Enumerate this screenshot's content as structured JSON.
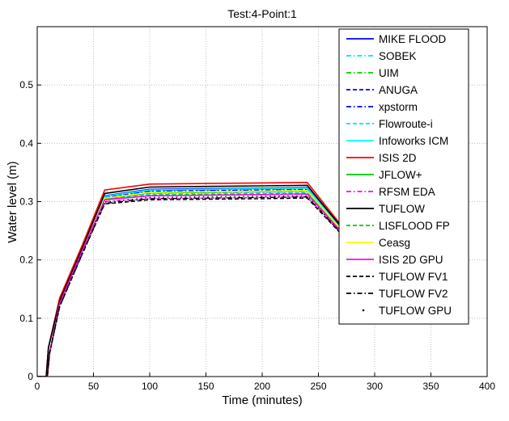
{
  "chart_data": {
    "type": "line",
    "title": "Test:4-Point:1",
    "xlabel": "Time (minutes)",
    "ylabel": "Water level (m)",
    "xlim": [
      0,
      400
    ],
    "ylim": [
      0,
      0.6
    ],
    "xticks": [
      0,
      50,
      100,
      150,
      200,
      250,
      300,
      350,
      400
    ],
    "yticks": [
      0,
      0.1,
      0.2,
      0.3,
      0.4,
      0.5
    ],
    "grid": true,
    "legend_position": "top-right",
    "series": [
      {
        "name": "MIKE FLOOD",
        "color": "#0000ff",
        "dash": "solid",
        "x": [
          0,
          8,
          10,
          20,
          40,
          60,
          100,
          150,
          200,
          240,
          270
        ],
        "y": [
          0,
          0,
          0.05,
          0.13,
          0.22,
          0.31,
          0.321,
          0.322,
          0.323,
          0.324,
          0.255
        ]
      },
      {
        "name": "SOBEK",
        "color": "#00e5e5",
        "dash": "dashdot",
        "x": [
          0,
          9,
          11,
          20,
          40,
          60,
          100,
          150,
          200,
          240,
          270
        ],
        "y": [
          0,
          0,
          0.04,
          0.125,
          0.215,
          0.305,
          0.314,
          0.315,
          0.316,
          0.317,
          0.25
        ]
      },
      {
        "name": "UIM",
        "color": "#00cc00",
        "dash": "dashdot",
        "x": [
          0,
          9,
          11,
          20,
          40,
          60,
          100,
          150,
          200,
          240,
          270
        ],
        "y": [
          0,
          0,
          0.04,
          0.125,
          0.215,
          0.306,
          0.317,
          0.318,
          0.319,
          0.32,
          0.252
        ]
      },
      {
        "name": "ANUGA",
        "color": "#0000ff",
        "dash": "dashed",
        "x": [
          0,
          9,
          11,
          20,
          40,
          60,
          100,
          150,
          200,
          240,
          270
        ],
        "y": [
          0,
          0,
          0.04,
          0.125,
          0.215,
          0.308,
          0.319,
          0.32,
          0.321,
          0.322,
          0.253
        ]
      },
      {
        "name": "xpstorm",
        "color": "#0000ff",
        "dash": "dashdot",
        "x": [
          0,
          9,
          11,
          20,
          40,
          60,
          100,
          150,
          200,
          240,
          270
        ],
        "y": [
          0,
          0,
          0.04,
          0.125,
          0.215,
          0.307,
          0.318,
          0.319,
          0.32,
          0.321,
          0.252
        ]
      },
      {
        "name": "Flowroute-i",
        "color": "#00e5e5",
        "dash": "dashed",
        "x": [
          0,
          9,
          11,
          20,
          40,
          60,
          100,
          150,
          200,
          240,
          270
        ],
        "y": [
          0,
          0,
          0.04,
          0.125,
          0.215,
          0.304,
          0.312,
          0.313,
          0.314,
          0.315,
          0.25
        ]
      },
      {
        "name": "Infoworks ICM",
        "color": "#00ffff",
        "dash": "solid",
        "x": [
          0,
          9,
          11,
          20,
          40,
          60,
          100,
          150,
          200,
          240,
          270
        ],
        "y": [
          0,
          0,
          0.04,
          0.125,
          0.215,
          0.309,
          0.32,
          0.321,
          0.322,
          0.323,
          0.254
        ]
      },
      {
        "name": "ISIS 2D",
        "color": "#ff0000",
        "dash": "solid",
        "x": [
          0,
          8,
          10,
          20,
          40,
          60,
          100,
          150,
          200,
          240,
          270
        ],
        "y": [
          0,
          0,
          0.05,
          0.135,
          0.225,
          0.32,
          0.33,
          0.331,
          0.332,
          0.333,
          0.26
        ]
      },
      {
        "name": "JFLOW+",
        "color": "#00cc00",
        "dash": "solid",
        "x": [
          0,
          9,
          11,
          20,
          40,
          60,
          100,
          150,
          200,
          240,
          270
        ],
        "y": [
          0,
          0,
          0.04,
          0.125,
          0.215,
          0.305,
          0.315,
          0.316,
          0.317,
          0.318,
          0.251
        ]
      },
      {
        "name": "RFSM EDA",
        "color": "#ff00ff",
        "dash": "dashdot",
        "x": [
          0,
          9,
          11,
          20,
          40,
          60,
          100,
          150,
          200,
          240,
          270
        ],
        "y": [
          0,
          0,
          0.04,
          0.125,
          0.215,
          0.3,
          0.305,
          0.306,
          0.307,
          0.308,
          0.248
        ]
      },
      {
        "name": "TUFLOW",
        "color": "#000000",
        "dash": "solid",
        "x": [
          0,
          8,
          10,
          20,
          40,
          60,
          100,
          150,
          200,
          240,
          270
        ],
        "y": [
          0,
          0,
          0.05,
          0.13,
          0.22,
          0.314,
          0.325,
          0.326,
          0.327,
          0.328,
          0.257
        ]
      },
      {
        "name": "LISFLOOD FP",
        "color": "#00cc00",
        "dash": "dashed",
        "x": [
          0,
          9,
          11,
          20,
          40,
          60,
          100,
          150,
          200,
          240,
          270
        ],
        "y": [
          0,
          0,
          0.04,
          0.125,
          0.215,
          0.303,
          0.311,
          0.312,
          0.313,
          0.314,
          0.25
        ]
      },
      {
        "name": "Ceasg",
        "color": "#ffff00",
        "dash": "solid",
        "x": [
          0,
          9,
          11,
          20,
          40,
          60,
          100,
          150,
          200,
          240,
          270
        ],
        "y": [
          0,
          0,
          0.04,
          0.125,
          0.215,
          0.306,
          0.316,
          0.317,
          0.318,
          0.319,
          0.252
        ]
      },
      {
        "name": "ISIS 2D GPU",
        "color": "#ff00ff",
        "dash": "solid",
        "x": [
          0,
          9,
          11,
          20,
          40,
          60,
          100,
          150,
          200,
          240,
          270
        ],
        "y": [
          0,
          0,
          0.04,
          0.125,
          0.215,
          0.303,
          0.31,
          0.311,
          0.312,
          0.313,
          0.249
        ]
      },
      {
        "name": "TUFLOW FV1",
        "color": "#000000",
        "dash": "dashed",
        "x": [
          0,
          9,
          11,
          20,
          40,
          60,
          100,
          150,
          200,
          240,
          270
        ],
        "y": [
          0,
          0,
          0.04,
          0.12,
          0.21,
          0.296,
          0.303,
          0.304,
          0.305,
          0.306,
          0.245
        ]
      },
      {
        "name": "TUFLOW FV2",
        "color": "#000000",
        "dash": "dashdot",
        "x": [
          0,
          9,
          11,
          20,
          40,
          60,
          100,
          150,
          200,
          240,
          270
        ],
        "y": [
          0,
          0,
          0.04,
          0.12,
          0.21,
          0.297,
          0.305,
          0.306,
          0.307,
          0.308,
          0.246
        ]
      },
      {
        "name": "TUFLOW GPU",
        "color": "#000000",
        "dash": "dotted",
        "x": [
          0,
          9,
          11,
          20,
          40,
          60,
          100,
          150,
          200,
          240,
          270
        ],
        "y": [
          0,
          0,
          0.04,
          0.122,
          0.212,
          0.299,
          0.307,
          0.308,
          0.309,
          0.31,
          0.247
        ]
      }
    ]
  }
}
